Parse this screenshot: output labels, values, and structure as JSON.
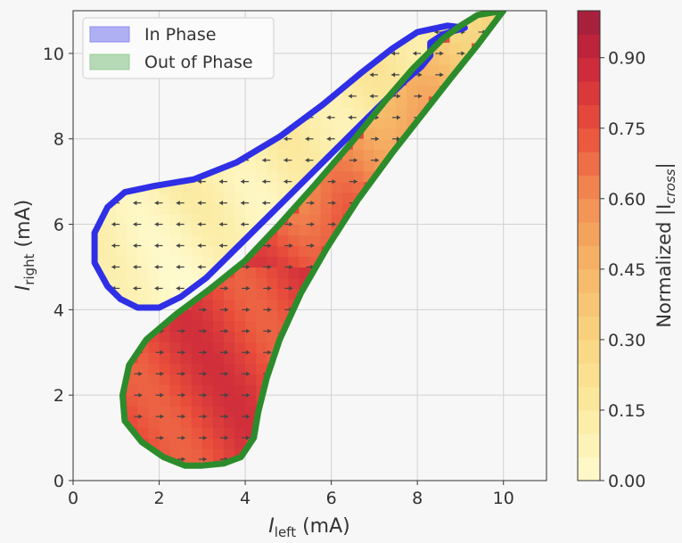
{
  "chart_data": {
    "type": "heatmap",
    "title": "",
    "xlabel": {
      "base": "I",
      "sub": "left",
      "unit": " (mA)"
    },
    "ylabel": {
      "base": "I",
      "sub": "right",
      "unit": " (mA)"
    },
    "xlim": [
      0,
      11
    ],
    "ylim": [
      0,
      11
    ],
    "xticks": [
      "0",
      "2",
      "4",
      "6",
      "8",
      "10"
    ],
    "yticks": [
      "0",
      "2",
      "4",
      "6",
      "8",
      "10"
    ],
    "grid": true,
    "legend": {
      "placement": "top-left",
      "entries": [
        {
          "label": "In Phase",
          "color": "#8f8ff0"
        },
        {
          "label": "Out of Phase",
          "color": "#98cc98"
        }
      ]
    },
    "colorbar": {
      "label": "Normalized |I",
      "label_sub": "cross",
      "label_end": "|",
      "min": 0,
      "max": 1,
      "ticks": [
        "0.00",
        "0.15",
        "0.30",
        "0.45",
        "0.60",
        "0.75",
        "0.90"
      ],
      "colormap": "YlOrRd"
    },
    "regions": [
      {
        "name": "In Phase",
        "outline_color": "#2f2fe6",
        "outline": [
          [
            0.5,
            5.1
          ],
          [
            0.5,
            5.8
          ],
          [
            0.8,
            6.4
          ],
          [
            1.2,
            6.75
          ],
          [
            1.9,
            6.9
          ],
          [
            2.8,
            7.05
          ],
          [
            3.8,
            7.45
          ],
          [
            4.8,
            8.05
          ],
          [
            5.8,
            8.8
          ],
          [
            6.7,
            9.55
          ],
          [
            7.4,
            10.1
          ],
          [
            8.0,
            10.5
          ],
          [
            8.7,
            10.65
          ],
          [
            9.1,
            10.6
          ],
          [
            8.6,
            10.45
          ],
          [
            8.3,
            10.25
          ],
          [
            8.3,
            9.95
          ],
          [
            8.1,
            9.7
          ],
          [
            7.7,
            9.35
          ],
          [
            7.2,
            8.85
          ],
          [
            6.5,
            8.15
          ],
          [
            5.6,
            7.25
          ],
          [
            4.7,
            6.35
          ],
          [
            3.9,
            5.55
          ],
          [
            3.1,
            4.75
          ],
          [
            2.5,
            4.3
          ],
          [
            2.0,
            4.05
          ],
          [
            1.5,
            4.05
          ],
          [
            1.1,
            4.25
          ],
          [
            0.8,
            4.55
          ]
        ],
        "value_profile": [
          0.04,
          0.08,
          0.18
        ],
        "arrow_direction": "left"
      },
      {
        "name": "Out of Phase",
        "outline_color": "#2c8c2c",
        "outline": [
          [
            3.0,
            0.35
          ],
          [
            2.6,
            0.35
          ],
          [
            2.1,
            0.55
          ],
          [
            1.6,
            0.9
          ],
          [
            1.2,
            1.4
          ],
          [
            1.15,
            2.0
          ],
          [
            1.3,
            2.7
          ],
          [
            1.7,
            3.3
          ],
          [
            2.4,
            3.9
          ],
          [
            3.2,
            4.5
          ],
          [
            4.0,
            5.15
          ],
          [
            4.8,
            6.0
          ],
          [
            5.6,
            6.9
          ],
          [
            6.5,
            7.95
          ],
          [
            7.3,
            8.95
          ],
          [
            7.9,
            9.65
          ],
          [
            8.3,
            10.05
          ],
          [
            8.6,
            10.35
          ],
          [
            9.0,
            10.65
          ],
          [
            9.4,
            10.9
          ],
          [
            10.0,
            11.0
          ],
          [
            9.4,
            10.2
          ],
          [
            8.8,
            9.45
          ],
          [
            8.1,
            8.55
          ],
          [
            7.4,
            7.65
          ],
          [
            6.6,
            6.55
          ],
          [
            5.9,
            5.45
          ],
          [
            5.3,
            4.4
          ],
          [
            4.8,
            3.3
          ],
          [
            4.5,
            2.4
          ],
          [
            4.3,
            1.6
          ],
          [
            4.2,
            1.0
          ],
          [
            3.9,
            0.55
          ],
          [
            3.5,
            0.4
          ]
        ],
        "value_profile": [
          0.65,
          0.78,
          0.28
        ],
        "arrow_direction": "right"
      }
    ]
  }
}
